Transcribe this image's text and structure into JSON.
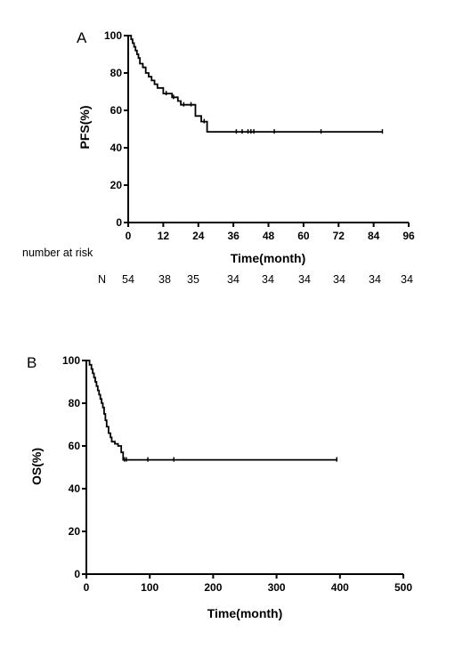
{
  "chart_data": [
    {
      "panel": "A",
      "type": "line",
      "step": true,
      "xlabel": "Time(month)",
      "ylabel": "PFS(%)",
      "xlim": [
        0,
        96
      ],
      "ylim": [
        0,
        100
      ],
      "xticks": [
        "0",
        "12",
        "24",
        "36",
        "48",
        "60",
        "72",
        "84",
        "96"
      ],
      "yticks": [
        "0",
        "20",
        "40",
        "60",
        "80",
        "100"
      ],
      "series": [
        {
          "x": [
            0,
            1,
            1.5,
            2,
            2.5,
            3,
            3.5,
            4,
            5,
            6,
            7,
            8,
            9,
            10,
            12,
            15,
            17,
            18,
            22,
            23,
            25,
            27,
            87
          ],
          "y": [
            100,
            98,
            96,
            94,
            92,
            90,
            88,
            85,
            83,
            80,
            78,
            76,
            74,
            72,
            69,
            67,
            65,
            63,
            63,
            57,
            54,
            48.5,
            48.5
          ]
        }
      ],
      "censored": [
        {
          "x": 13,
          "y": 69
        },
        {
          "x": 15.5,
          "y": 67
        },
        {
          "x": 19,
          "y": 63
        },
        {
          "x": 21.5,
          "y": 63
        },
        {
          "x": 26,
          "y": 54
        },
        {
          "x": 37,
          "y": 48.5
        },
        {
          "x": 39,
          "y": 48.5
        },
        {
          "x": 41,
          "y": 48.5
        },
        {
          "x": 42,
          "y": 48.5
        },
        {
          "x": 43,
          "y": 48.5
        },
        {
          "x": 50,
          "y": 48.5
        },
        {
          "x": 66,
          "y": 48.5
        },
        {
          "x": 87,
          "y": 48.5
        }
      ],
      "risk_table": {
        "label": "number at risk",
        "row_label": "N",
        "values": [
          "54",
          "38",
          "35",
          "34",
          "34",
          "34",
          "34",
          "34",
          "34"
        ]
      }
    },
    {
      "panel": "B",
      "type": "line",
      "step": true,
      "xlabel": "Time(month)",
      "ylabel": "OS(%)",
      "xlim": [
        0,
        500
      ],
      "ylim": [
        0,
        100
      ],
      "xticks": [
        "0",
        "100",
        "200",
        "300",
        "400",
        "500"
      ],
      "yticks": [
        "0",
        "20",
        "40",
        "60",
        "80",
        "100"
      ],
      "series": [
        {
          "x": [
            0,
            5,
            8,
            10,
            12,
            14,
            16,
            18,
            20,
            22,
            24,
            26,
            28,
            30,
            32,
            35,
            38,
            40,
            45,
            50,
            55,
            58,
            395
          ],
          "y": [
            100,
            98,
            96,
            94,
            92,
            90,
            88,
            86,
            84,
            82,
            80,
            78,
            75,
            72,
            69,
            66,
            64,
            62,
            61,
            60,
            57,
            53.5,
            53.5
          ]
        }
      ],
      "censored": [
        {
          "x": 60,
          "y": 53.5
        },
        {
          "x": 63,
          "y": 53.5
        },
        {
          "x": 97,
          "y": 53.5
        },
        {
          "x": 138,
          "y": 53.5
        },
        {
          "x": 395,
          "y": 53.5
        }
      ]
    }
  ]
}
